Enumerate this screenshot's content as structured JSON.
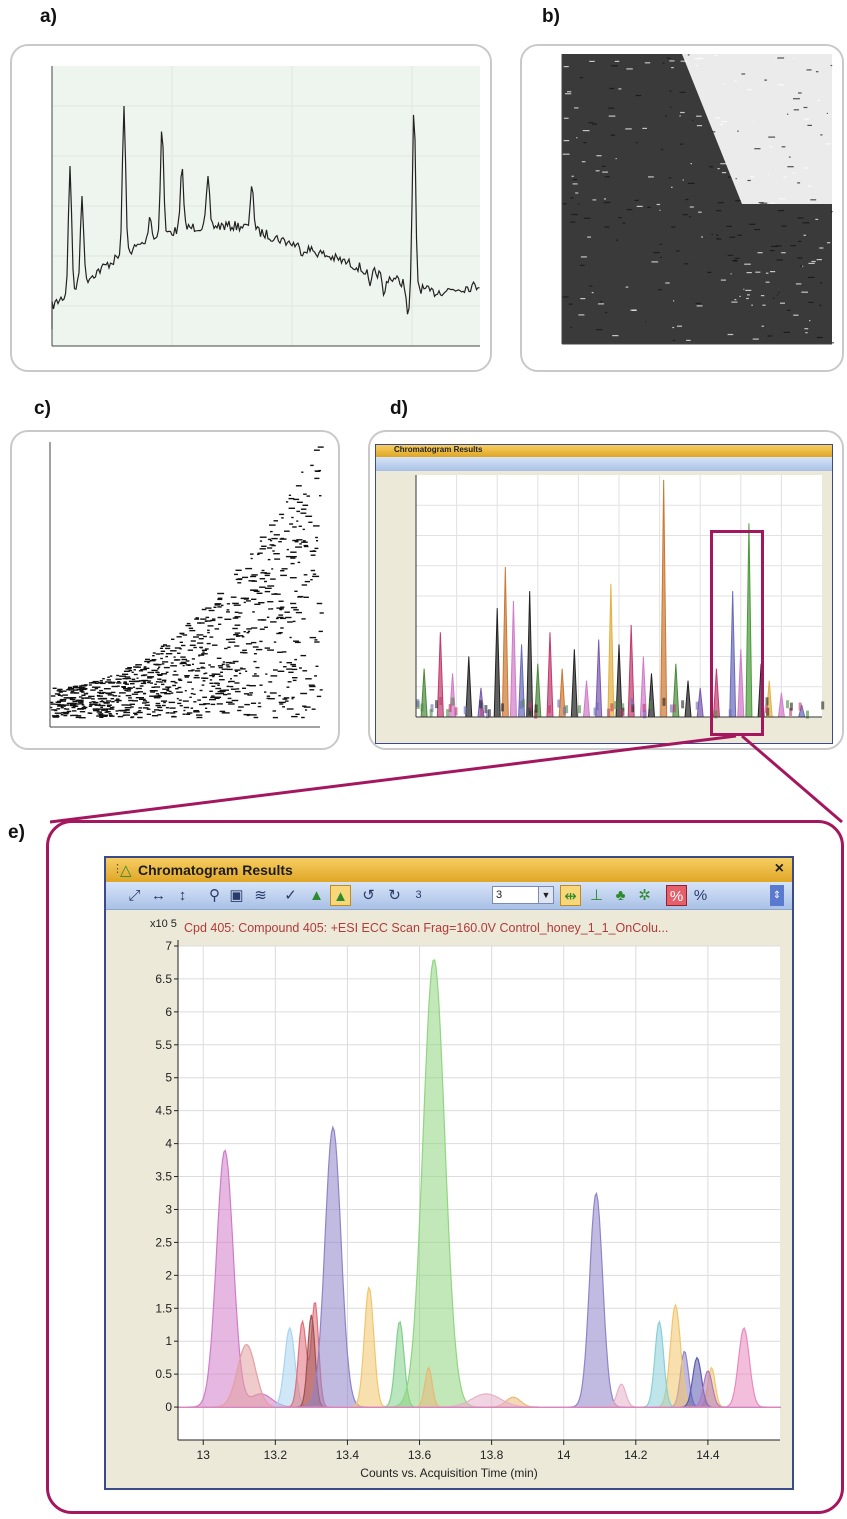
{
  "panels": {
    "a": "a)",
    "b": "b)",
    "c": "c)",
    "d": "d)",
    "e": "e)"
  },
  "colors": {
    "magenta_frame": "#a4175f",
    "panel_a_bg": "#eef5ee",
    "panel_b_fill": "#3a3a3a"
  },
  "window_e": {
    "title": "Chromatogram Results",
    "close_label": "×",
    "combo_value": "3",
    "icons": [
      "pan-diagonal-icon",
      "zoom-horizontal-icon",
      "zoom-vertical-icon",
      "zoom-magnifier-icon",
      "autoscale-icon",
      "overlay-icon",
      "check-peak-icon",
      "integrate-icon",
      "integrate-active-icon",
      "undo-icon",
      "redo-icon",
      "link-axes-icon",
      "peak-label-icon",
      "peak-shape-icon",
      "peak-select-icon",
      "percent-active-icon",
      "percent-icon"
    ],
    "chart_data": {
      "type": "area",
      "title": "Cpd 405: Compound 405: +ESI ECC Scan Frag=160.0V Control_honey_1_1_OnColu...",
      "y_multiplier_label": "x10 5",
      "xlabel": "Counts vs. Acquisition Time (min)",
      "xlim": [
        12.93,
        14.6
      ],
      "ylim": [
        -0.5,
        7.0
      ],
      "x_ticks": [
        13,
        13.2,
        13.4,
        13.6,
        13.8,
        14,
        14.2,
        14.4
      ],
      "x_tick_labels": [
        "13",
        "13.2",
        "13.4",
        "13.6",
        "13.8",
        "14",
        "14.2",
        "14.4"
      ],
      "y_ticks": [
        0,
        0.5,
        1,
        1.5,
        2,
        2.5,
        3,
        3.5,
        4,
        4.5,
        5,
        5.5,
        6,
        6.5,
        7
      ],
      "y_tick_labels": [
        "0",
        "0.5",
        "1",
        "1.5",
        "2",
        "2.5",
        "3",
        "3.5",
        "4",
        "4.5",
        "5",
        "5.5",
        "6",
        "6.5",
        "7"
      ],
      "grid": true,
      "series": [
        {
          "color": "#d07bc8",
          "peaks": [
            [
              13.06,
              3.9,
              0.023
            ],
            [
              13.16,
              0.2,
              0.03
            ]
          ]
        },
        {
          "color": "#e3a0a3",
          "peaks": [
            [
              13.12,
              0.95,
              0.025
            ]
          ]
        },
        {
          "color": "#a7d4ee",
          "peaks": [
            [
              13.24,
              1.2,
              0.014
            ]
          ]
        },
        {
          "color": "#e0707a",
          "peaks": [
            [
              13.275,
              1.3,
              0.011
            ],
            [
              13.31,
              1.6,
              0.01
            ]
          ]
        },
        {
          "color": "#a05050",
          "peaks": [
            [
              13.3,
              1.4,
              0.01
            ]
          ]
        },
        {
          "color": "#8e84c8",
          "peaks": [
            [
              13.36,
              4.25,
              0.022
            ],
            [
              14.09,
              3.25,
              0.018
            ],
            [
              14.335,
              0.85,
              0.011
            ]
          ]
        },
        {
          "color": "#f2c56c",
          "peaks": [
            [
              13.46,
              1.82,
              0.013
            ],
            [
              14.31,
              1.55,
              0.014
            ],
            [
              14.41,
              0.6,
              0.01
            ]
          ]
        },
        {
          "color": "#7fd08a",
          "peaks": [
            [
              13.545,
              1.3,
              0.012
            ]
          ]
        },
        {
          "color": "#8fd680",
          "peaks": [
            [
              13.64,
              6.8,
              0.03
            ]
          ]
        },
        {
          "color": "#e8b878",
          "peaks": [
            [
              13.625,
              0.6,
              0.01
            ],
            [
              13.86,
              0.15,
              0.02
            ]
          ]
        },
        {
          "color": "#e6b0c8",
          "peaks": [
            [
              13.785,
              0.2,
              0.04
            ],
            [
              14.16,
              0.35,
              0.012
            ]
          ]
        },
        {
          "color": "#88cfd8",
          "peaks": [
            [
              14.265,
              1.3,
              0.012
            ]
          ]
        },
        {
          "color": "#5a5ab0",
          "peaks": [
            [
              14.37,
              0.75,
              0.012
            ]
          ]
        },
        {
          "color": "#b07ac0",
          "peaks": [
            [
              14.4,
              0.55,
              0.012
            ]
          ]
        },
        {
          "color": "#e889c0",
          "peaks": [
            [
              14.5,
              1.2,
              0.015
            ]
          ]
        }
      ]
    }
  },
  "window_d": {
    "title": "Chromatogram Results",
    "chart_data": {
      "type": "bar",
      "xlim": [
        0,
        1
      ],
      "ylim": [
        0,
        1
      ],
      "peaks": [
        {
          "x": 0.02,
          "h": 0.2,
          "c": "#4a8a3a"
        },
        {
          "x": 0.06,
          "h": 0.35,
          "c": "#c03b6c"
        },
        {
          "x": 0.09,
          "h": 0.18,
          "c": "#d07bc8"
        },
        {
          "x": 0.13,
          "h": 0.25,
          "c": "#222"
        },
        {
          "x": 0.16,
          "h": 0.12,
          "c": "#7b59b0"
        },
        {
          "x": 0.2,
          "h": 0.45,
          "c": "#222"
        },
        {
          "x": 0.22,
          "h": 0.62,
          "c": "#cc7733"
        },
        {
          "x": 0.24,
          "h": 0.48,
          "c": "#d07bc8"
        },
        {
          "x": 0.26,
          "h": 0.3,
          "c": "#6a6aba"
        },
        {
          "x": 0.28,
          "h": 0.52,
          "c": "#222"
        },
        {
          "x": 0.3,
          "h": 0.22,
          "c": "#4a8a3a"
        },
        {
          "x": 0.33,
          "h": 0.35,
          "c": "#c03b6c"
        },
        {
          "x": 0.36,
          "h": 0.2,
          "c": "#cc7733"
        },
        {
          "x": 0.39,
          "h": 0.28,
          "c": "#222"
        },
        {
          "x": 0.42,
          "h": 0.15,
          "c": "#d07bc8"
        },
        {
          "x": 0.45,
          "h": 0.32,
          "c": "#7b59b0"
        },
        {
          "x": 0.48,
          "h": 0.55,
          "c": "#e3b040"
        },
        {
          "x": 0.5,
          "h": 0.3,
          "c": "#222"
        },
        {
          "x": 0.53,
          "h": 0.38,
          "c": "#c03b6c"
        },
        {
          "x": 0.56,
          "h": 0.25,
          "c": "#d07bc8"
        },
        {
          "x": 0.58,
          "h": 0.18,
          "c": "#222"
        },
        {
          "x": 0.61,
          "h": 0.98,
          "c": "#cc7733"
        },
        {
          "x": 0.64,
          "h": 0.22,
          "c": "#4a8a3a"
        },
        {
          "x": 0.67,
          "h": 0.15,
          "c": "#222"
        },
        {
          "x": 0.7,
          "h": 0.12,
          "c": "#7b59b0"
        },
        {
          "x": 0.74,
          "h": 0.2,
          "c": "#c03b6c"
        },
        {
          "x": 0.78,
          "h": 0.52,
          "c": "#6a6aba"
        },
        {
          "x": 0.8,
          "h": 0.28,
          "c": "#d07bc8"
        },
        {
          "x": 0.82,
          "h": 0.8,
          "c": "#4a9a3a"
        },
        {
          "x": 0.85,
          "h": 0.22,
          "c": "#222"
        },
        {
          "x": 0.87,
          "h": 0.15,
          "c": "#e3b040"
        },
        {
          "x": 0.9,
          "h": 0.1,
          "c": "#d07bc8"
        },
        {
          "x": 0.95,
          "h": 0.05,
          "c": "#6a6aba"
        }
      ]
    }
  }
}
